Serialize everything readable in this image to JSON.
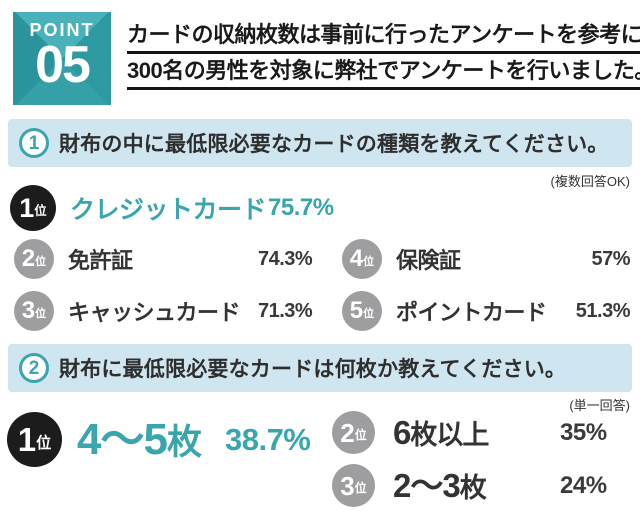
{
  "colors": {
    "teal": "#39a5ad",
    "light_blue": "#cfe5ef",
    "black_badge": "#1c1c1c",
    "gray_badge": "#9e9ea0",
    "text_dark": "#2e2e2e"
  },
  "rank_suffix": "位",
  "point": {
    "label": "POINT",
    "number": "05"
  },
  "heading": {
    "line1": "カードの収納枚数は事前に行ったアンケートを参考に",
    "line2": "300名の男性を対象に弊社でアンケートを行いました。"
  },
  "q1": {
    "number": "1",
    "title": "財布の中に最低限必要なカードの種類を教えてください。",
    "note": "(複数回答OK)",
    "ranks": [
      {
        "rank": "1",
        "label": "クレジットカード",
        "value": "75.7%"
      },
      {
        "rank": "2",
        "label": "免許証",
        "value": "74.3%"
      },
      {
        "rank": "3",
        "label": "キャッシュカード",
        "value": "71.3%"
      },
      {
        "rank": "4",
        "label": "保険証",
        "value": "57%"
      },
      {
        "rank": "5",
        "label": "ポイントカード",
        "value": "51.3%"
      }
    ]
  },
  "q2": {
    "number": "2",
    "title": "財布に最低限必要なカードは何枚か教えてください。",
    "note": "(単一回答)",
    "ranks": [
      {
        "rank": "1",
        "label_main": "4〜5",
        "label_unit": "枚",
        "value": "38.7%"
      },
      {
        "rank": "2",
        "label_main": "6",
        "label_unit": "枚以上",
        "value": "35%"
      },
      {
        "rank": "3",
        "label_main": "2〜3",
        "label_unit": "枚",
        "value": "24%"
      }
    ]
  },
  "chart_data": [
    {
      "type": "bar",
      "title": "財布の中に最低限必要なカードの種類を教えてください。",
      "note": "複数回答OK",
      "categories": [
        "クレジットカード",
        "免許証",
        "キャッシュカード",
        "保険証",
        "ポイントカード"
      ],
      "values": [
        75.7,
        74.3,
        71.3,
        57,
        51.3
      ],
      "unit": "%",
      "layout": "ranked list, rank 1 full row, ranks 2-3 left column, ranks 4-5 right column"
    },
    {
      "type": "bar",
      "title": "財布に最低限必要なカードは何枚か教えてください。",
      "note": "単一回答",
      "categories": [
        "4〜5枚",
        "6枚以上",
        "2〜3枚"
      ],
      "values": [
        38.7,
        35,
        24
      ],
      "unit": "%",
      "layout": "ranked list, rank 1 left, ranks 2-3 right column"
    }
  ]
}
